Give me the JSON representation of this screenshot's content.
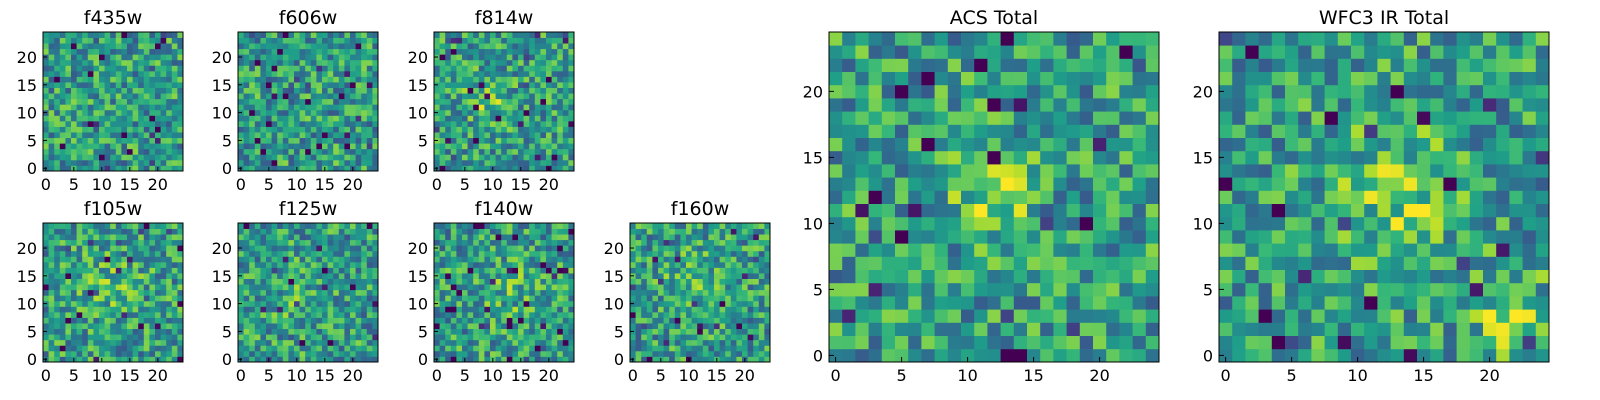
{
  "figure": {
    "colormap": "viridis",
    "colors": {
      "low": "#440154",
      "mid": "#21918c",
      "high": "#fde725",
      "axis": "#000000"
    }
  },
  "chart_data": [
    {
      "type": "heatmap",
      "title": "f435w",
      "grid": false,
      "size": [
        25,
        25
      ],
      "xlim": [
        0,
        24
      ],
      "ylim": [
        0,
        24
      ],
      "xticks": [
        "0",
        "5",
        "10",
        "15",
        "20"
      ],
      "yticks": [
        "0",
        "5",
        "10",
        "15",
        "20"
      ]
    },
    {
      "type": "heatmap",
      "title": "f606w",
      "grid": false,
      "size": [
        25,
        25
      ],
      "xlim": [
        0,
        24
      ],
      "ylim": [
        0,
        24
      ],
      "xticks": [
        "0",
        "5",
        "10",
        "15",
        "20"
      ],
      "yticks": [
        "0",
        "5",
        "10",
        "15",
        "20"
      ]
    },
    {
      "type": "heatmap",
      "title": "f814w",
      "grid": false,
      "size": [
        25,
        25
      ],
      "xlim": [
        0,
        24
      ],
      "ylim": [
        0,
        24
      ],
      "xticks": [
        "0",
        "5",
        "10",
        "15",
        "20"
      ],
      "yticks": [
        "0",
        "5",
        "10",
        "15",
        "20"
      ]
    },
    {
      "type": "heatmap",
      "title": "f105w",
      "grid": false,
      "size": [
        25,
        25
      ],
      "xlim": [
        0,
        24
      ],
      "ylim": [
        0,
        24
      ],
      "xticks": [
        "0",
        "5",
        "10",
        "15",
        "20"
      ],
      "yticks": [
        "0",
        "5",
        "10",
        "15",
        "20"
      ]
    },
    {
      "type": "heatmap",
      "title": "f125w",
      "grid": false,
      "size": [
        25,
        25
      ],
      "xlim": [
        0,
        24
      ],
      "ylim": [
        0,
        24
      ],
      "xticks": [
        "0",
        "5",
        "10",
        "15",
        "20"
      ],
      "yticks": [
        "0",
        "5",
        "10",
        "15",
        "20"
      ]
    },
    {
      "type": "heatmap",
      "title": "f140w",
      "grid": false,
      "size": [
        25,
        25
      ],
      "xlim": [
        0,
        24
      ],
      "ylim": [
        0,
        24
      ],
      "xticks": [
        "0",
        "5",
        "10",
        "15",
        "20"
      ],
      "yticks": [
        "0",
        "5",
        "10",
        "15",
        "20"
      ]
    },
    {
      "type": "heatmap",
      "title": "f160w",
      "grid": false,
      "size": [
        25,
        25
      ],
      "xlim": [
        0,
        24
      ],
      "ylim": [
        0,
        24
      ],
      "xticks": [
        "0",
        "5",
        "10",
        "15",
        "20"
      ],
      "yticks": [
        "0",
        "5",
        "10",
        "15",
        "20"
      ]
    },
    {
      "type": "heatmap",
      "title": "ACS Total",
      "grid": false,
      "size": [
        25,
        25
      ],
      "xlim": [
        0,
        24
      ],
      "ylim": [
        0,
        24
      ],
      "xticks": [
        "0",
        "5",
        "10",
        "15",
        "20"
      ],
      "yticks": [
        "0",
        "5",
        "10",
        "15",
        "20"
      ]
    },
    {
      "type": "heatmap",
      "title": "WFC3 IR Total",
      "grid": false,
      "size": [
        25,
        25
      ],
      "xlim": [
        0,
        24
      ],
      "ylim": [
        0,
        24
      ],
      "xticks": [
        "0",
        "5",
        "10",
        "15",
        "20"
      ],
      "yticks": [
        "0",
        "5",
        "10",
        "15",
        "20"
      ]
    }
  ]
}
